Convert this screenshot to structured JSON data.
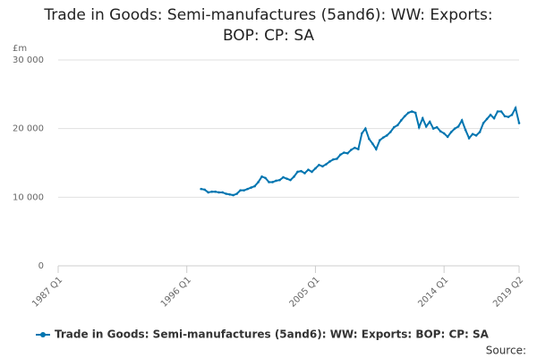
{
  "chart_data": {
    "type": "line",
    "title": "Trade in Goods: Semi-manufactures (5and6): WW: Exports: BOP: CP: SA",
    "y_label": "£m",
    "source": "Source:",
    "categories": [
      "1987 Q1",
      null,
      null,
      null,
      null,
      null,
      null,
      null,
      null,
      null,
      null,
      null,
      null,
      null,
      null,
      null,
      null,
      null,
      null,
      null,
      null,
      null,
      null,
      null,
      null,
      null,
      null,
      null,
      null,
      null,
      null,
      null,
      null,
      null,
      null,
      null,
      "1996 Q1",
      null,
      null,
      null,
      null,
      null,
      null,
      null,
      null,
      null,
      null,
      null,
      null,
      null,
      null,
      null,
      null,
      null,
      null,
      null,
      null,
      null,
      null,
      null,
      null,
      null,
      null,
      null,
      null,
      null,
      null,
      null,
      null,
      null,
      null,
      null,
      "2005 Q1",
      null,
      null,
      null,
      null,
      null,
      null,
      null,
      null,
      null,
      null,
      null,
      null,
      null,
      null,
      null,
      null,
      null,
      null,
      null,
      null,
      null,
      null,
      null,
      null,
      null,
      null,
      null,
      null,
      null,
      null,
      null,
      null,
      null,
      null,
      null,
      "2014 Q1",
      null,
      null,
      null,
      null,
      null,
      null,
      null,
      null,
      null,
      null,
      null,
      null,
      null,
      null,
      null,
      null,
      null,
      null,
      null,
      null,
      "2019 Q2"
    ],
    "series": [
      {
        "name": "Trade in Goods: Semi-manufactures (5and6): WW: Exports: BOP: CP: SA",
        "color": "#0075b0",
        "values": [
          null,
          null,
          null,
          null,
          null,
          null,
          null,
          null,
          null,
          null,
          null,
          null,
          null,
          null,
          null,
          null,
          null,
          null,
          null,
          null,
          null,
          null,
          null,
          null,
          null,
          null,
          null,
          null,
          null,
          null,
          null,
          null,
          null,
          null,
          null,
          null,
          null,
          null,
          null,
          null,
          11200,
          11100,
          10700,
          10800,
          10800,
          10700,
          10700,
          10500,
          10400,
          10300,
          10500,
          11000,
          11000,
          11200,
          11400,
          11600,
          12200,
          13000,
          12800,
          12200,
          12200,
          12400,
          12500,
          12900,
          12700,
          12500,
          13000,
          13700,
          13800,
          13500,
          14000,
          13700,
          14200,
          14700,
          14500,
          14800,
          15200,
          15500,
          15600,
          16200,
          16500,
          16400,
          16900,
          17200,
          17000,
          19300,
          20000,
          18500,
          17800,
          17000,
          18300,
          18700,
          19000,
          19500,
          20200,
          20500,
          21200,
          21800,
          22300,
          22500,
          22300,
          20200,
          21500,
          20300,
          21000,
          20000,
          20200,
          19600,
          19300,
          18800,
          19500,
          20000,
          20300,
          21200,
          19800,
          18600,
          19200,
          19000,
          19500,
          20800,
          21400,
          22000,
          21500,
          22500,
          22500,
          21800,
          21700,
          22000,
          23000,
          20800
        ]
      }
    ],
    "ylim": [
      0,
      30000
    ],
    "yticks": [
      0,
      {
        "value": 10000,
        "label": "10 000"
      },
      {
        "value": 20000,
        "label": "20 000"
      },
      {
        "value": 30000,
        "label": "30 000"
      }
    ],
    "grid": true
  }
}
